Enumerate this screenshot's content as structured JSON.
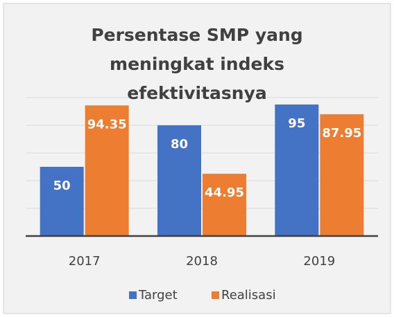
{
  "chart_data": {
    "type": "bar",
    "title": "Persentase SMP yang meningkat indeks efektivitasnya",
    "categories": [
      "2017",
      "2018",
      "2019"
    ],
    "series": [
      {
        "name": "Target",
        "color": "#4472c4",
        "values": [
          50,
          80,
          95
        ]
      },
      {
        "name": "Realisasi",
        "color": "#ed7d31",
        "values": [
          94.35,
          44.95,
          87.95
        ]
      }
    ],
    "ylim": [
      0,
      100
    ],
    "yticks": [
      0,
      20,
      40,
      60,
      80,
      100
    ],
    "grid": true,
    "legend": "bottom"
  }
}
